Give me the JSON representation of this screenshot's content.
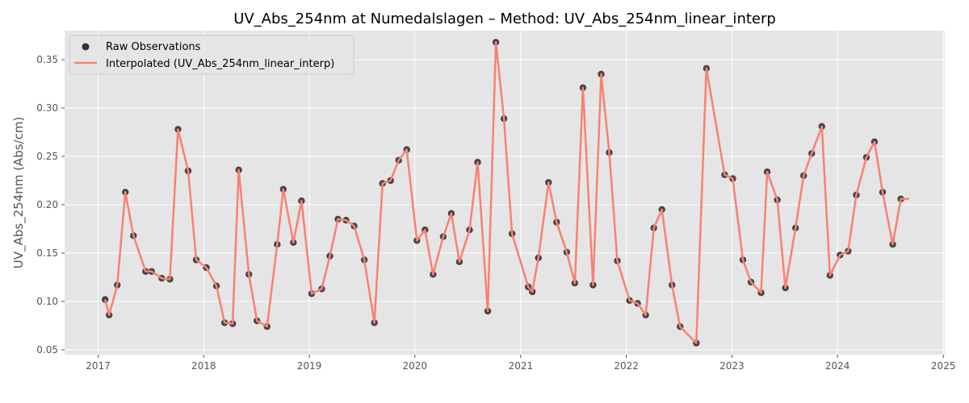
{
  "chart_data": {
    "type": "line",
    "title": "UV_Abs_254nm at Numedalslagen – Method: UV_Abs_254nm_linear_interp",
    "xlabel": "",
    "ylabel": "UV_Abs_254nm (Abs/cm)",
    "x_ticks": [
      "2017",
      "2018",
      "2019",
      "2020",
      "2021",
      "2022",
      "2023",
      "2024",
      "2025"
    ],
    "y_ticks": [
      "0.05",
      "0.10",
      "0.15",
      "0.20",
      "0.25",
      "0.30",
      "0.35"
    ],
    "xlim": [
      "2016-09-07",
      "2025-01-06"
    ],
    "ylim": [
      0.045,
      0.38
    ],
    "grid": true,
    "legend_position": "top-left",
    "series": [
      {
        "name": "Raw Observations",
        "kind": "scatter",
        "color": "#333333",
        "x": [
          "2017-01-25",
          "2017-02-08",
          "2017-03-08",
          "2017-04-05",
          "2017-05-03",
          "2017-06-14",
          "2017-07-05",
          "2017-08-09",
          "2017-09-06",
          "2017-10-04",
          "2017-11-08",
          "2017-12-06",
          "2018-01-10",
          "2018-02-14",
          "2018-03-14",
          "2018-04-11",
          "2018-05-02",
          "2018-06-06",
          "2018-07-04",
          "2018-08-08",
          "2018-09-12",
          "2018-10-03",
          "2018-11-07",
          "2018-12-05",
          "2019-01-09",
          "2019-02-13",
          "2019-03-13",
          "2019-04-10",
          "2019-05-08",
          "2019-06-05",
          "2019-07-10",
          "2019-08-14",
          "2019-09-11",
          "2019-10-09",
          "2019-11-06",
          "2019-12-04",
          "2020-01-08",
          "2020-02-05",
          "2020-03-04",
          "2020-04-08",
          "2020-05-06",
          "2020-06-03",
          "2020-07-08",
          "2020-08-05",
          "2020-09-09",
          "2020-10-07",
          "2020-11-04",
          "2020-12-02",
          "2021-01-27",
          "2021-02-10",
          "2021-03-03",
          "2021-04-07",
          "2021-05-05",
          "2021-06-09",
          "2021-07-07",
          "2021-08-04",
          "2021-09-08",
          "2021-10-06",
          "2021-11-03",
          "2021-12-01",
          "2022-01-12",
          "2022-02-09",
          "2022-03-09",
          "2022-04-06",
          "2022-05-04",
          "2022-06-08",
          "2022-07-06",
          "2022-08-31",
          "2022-10-05",
          "2022-12-07",
          "2023-01-04",
          "2023-02-08",
          "2023-03-08",
          "2023-04-12",
          "2023-05-03",
          "2023-06-07",
          "2023-07-05",
          "2023-08-09",
          "2023-09-06",
          "2023-10-04",
          "2023-11-08",
          "2023-12-06",
          "2024-01-10",
          "2024-02-07",
          "2024-03-06",
          "2024-04-10",
          "2024-05-08",
          "2024-06-05",
          "2024-07-10",
          "2024-08-07"
        ],
        "y": [
          0.102,
          0.086,
          0.117,
          0.213,
          0.168,
          0.131,
          0.131,
          0.124,
          0.123,
          0.278,
          0.235,
          0.143,
          0.135,
          0.116,
          0.078,
          0.077,
          0.236,
          0.128,
          0.08,
          0.074,
          0.159,
          0.216,
          0.161,
          0.204,
          0.108,
          0.113,
          0.147,
          0.185,
          0.184,
          0.178,
          0.143,
          0.078,
          0.222,
          0.225,
          0.246,
          0.257,
          0.163,
          0.174,
          0.128,
          0.167,
          0.191,
          0.141,
          0.174,
          0.244,
          0.09,
          0.368,
          0.289,
          0.17,
          0.115,
          0.11,
          0.145,
          0.223,
          0.182,
          0.151,
          0.119,
          0.321,
          0.117,
          0.335,
          0.254,
          0.142,
          0.101,
          0.098,
          0.086,
          0.176,
          0.195,
          0.117,
          0.074,
          0.057,
          0.341,
          0.231,
          0.227,
          0.143,
          0.12,
          0.109,
          0.234,
          0.205,
          0.114,
          0.176,
          0.23,
          0.253,
          0.281,
          0.127,
          0.148,
          0.152,
          0.21,
          0.249,
          0.265,
          0.213,
          0.159,
          0.206
        ]
      },
      {
        "name": "Interpolated (UV_Abs_254nm_linear_interp)",
        "kind": "line",
        "color": "#FA8072",
        "x": [
          "2017-01-25",
          "2017-02-08",
          "2017-03-08",
          "2017-04-05",
          "2017-05-03",
          "2017-06-14",
          "2017-07-05",
          "2017-08-09",
          "2017-09-06",
          "2017-10-04",
          "2017-11-08",
          "2017-12-06",
          "2018-01-10",
          "2018-02-14",
          "2018-03-14",
          "2018-04-11",
          "2018-05-02",
          "2018-06-06",
          "2018-07-04",
          "2018-08-08",
          "2018-09-12",
          "2018-10-03",
          "2018-11-07",
          "2018-12-05",
          "2019-01-09",
          "2019-02-13",
          "2019-03-13",
          "2019-04-10",
          "2019-05-08",
          "2019-06-05",
          "2019-07-10",
          "2019-08-14",
          "2019-09-11",
          "2019-10-09",
          "2019-11-06",
          "2019-12-04",
          "2020-01-08",
          "2020-02-05",
          "2020-03-04",
          "2020-04-08",
          "2020-05-06",
          "2020-06-03",
          "2020-07-08",
          "2020-08-05",
          "2020-09-09",
          "2020-10-07",
          "2020-11-04",
          "2020-12-02",
          "2021-01-27",
          "2021-02-10",
          "2021-03-03",
          "2021-04-07",
          "2021-05-05",
          "2021-06-09",
          "2021-07-07",
          "2021-08-04",
          "2021-09-08",
          "2021-10-06",
          "2021-11-03",
          "2021-12-01",
          "2022-01-12",
          "2022-02-09",
          "2022-03-09",
          "2022-04-06",
          "2022-05-04",
          "2022-06-08",
          "2022-07-06",
          "2022-08-31",
          "2022-10-05",
          "2022-12-07",
          "2023-01-04",
          "2023-02-08",
          "2023-03-08",
          "2023-04-12",
          "2023-05-03",
          "2023-06-07",
          "2023-07-05",
          "2023-08-09",
          "2023-09-06",
          "2023-10-04",
          "2023-11-08",
          "2023-12-06",
          "2024-01-10",
          "2024-02-07",
          "2024-03-06",
          "2024-04-10",
          "2024-05-08",
          "2024-06-05",
          "2024-07-10",
          "2024-08-07",
          "2024-09-04"
        ],
        "y": [
          0.102,
          0.086,
          0.117,
          0.213,
          0.168,
          0.131,
          0.131,
          0.124,
          0.123,
          0.278,
          0.235,
          0.143,
          0.135,
          0.116,
          0.078,
          0.077,
          0.236,
          0.128,
          0.08,
          0.074,
          0.159,
          0.216,
          0.161,
          0.204,
          0.108,
          0.113,
          0.147,
          0.185,
          0.184,
          0.178,
          0.143,
          0.078,
          0.222,
          0.225,
          0.246,
          0.257,
          0.163,
          0.174,
          0.128,
          0.167,
          0.191,
          0.141,
          0.174,
          0.244,
          0.09,
          0.368,
          0.289,
          0.17,
          0.115,
          0.11,
          0.145,
          0.223,
          0.182,
          0.151,
          0.119,
          0.321,
          0.117,
          0.335,
          0.254,
          0.142,
          0.101,
          0.098,
          0.086,
          0.176,
          0.195,
          0.117,
          0.074,
          0.057,
          0.341,
          0.231,
          0.227,
          0.143,
          0.12,
          0.109,
          0.234,
          0.205,
          0.114,
          0.176,
          0.23,
          0.253,
          0.281,
          0.127,
          0.148,
          0.152,
          0.21,
          0.249,
          0.265,
          0.213,
          0.159,
          0.206,
          0.206
        ]
      }
    ]
  }
}
